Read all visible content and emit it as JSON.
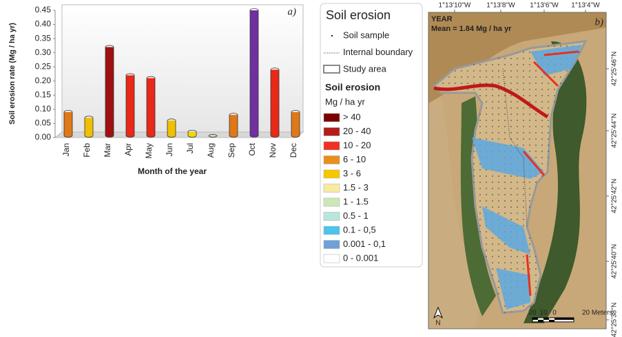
{
  "chart_data": {
    "type": "bar",
    "panel_label": "a)",
    "xlabel": "Month of the year",
    "ylabel": "Soil erosion rate (Mg / ha  yr)",
    "categories": [
      "Jan",
      "Feb",
      "Mar",
      "Apr",
      "May",
      "Jun",
      "Jul",
      "Aug",
      "Sep",
      "Oct",
      "Nov",
      "Dec"
    ],
    "values": [
      0.09,
      0.07,
      0.32,
      0.22,
      0.21,
      0.06,
      0.02,
      0.005,
      0.08,
      0.45,
      0.24,
      0.09
    ],
    "colors": [
      "#e07818",
      "#f0c000",
      "#a01010",
      "#e82818",
      "#e82818",
      "#f0c000",
      "#f0d800",
      "#d8d070",
      "#e07818",
      "#7030a0",
      "#e82818",
      "#e07818"
    ],
    "ylim": [
      0,
      0.45
    ],
    "yticks": [
      {
        "value": 0,
        "label": "0.00"
      },
      0.05,
      {
        "value": 0.1,
        "label": "0.10"
      },
      0.15,
      {
        "value": 0.2,
        "label": "0.20"
      },
      0.25,
      {
        "value": 0.3,
        "label": "0.30"
      },
      0.35,
      {
        "value": 0.4,
        "label": "0.40"
      },
      0.45
    ],
    "grid": false
  },
  "legend": {
    "title": "Soil erosion",
    "items": [
      {
        "label": "Soil sample"
      },
      {
        "label": "Internal boundary"
      },
      {
        "label": "Study area"
      }
    ],
    "classes_title": "Soil erosion",
    "units": "Mg / ha yr",
    "classes": [
      {
        "label": "> 40",
        "color": "#7a0000"
      },
      {
        "label": "20 - 40",
        "color": "#b41c1c"
      },
      {
        "label": "10 - 20",
        "color": "#f03020"
      },
      {
        "label": "6 - 10",
        "color": "#e8901a"
      },
      {
        "label": "3 - 6",
        "color": "#f5c800"
      },
      {
        "label": "1.5 - 3",
        "color": "#f8eaa0"
      },
      {
        "label": "1 - 1.5",
        "color": "#cce8b8"
      },
      {
        "label": "0.5 - 1",
        "color": "#b8e6dc"
      },
      {
        "label": "0.1 - 0,5",
        "color": "#4cc4ec"
      },
      {
        "label": "0.001 - 0,1",
        "color": "#6fa0d8"
      },
      {
        "label": "0 - 0.001",
        "color": "#ffffff"
      }
    ]
  },
  "map": {
    "period": "YEAR",
    "mean": "Mean = 1.84 Mg / ha yr",
    "panel_label": "b)",
    "longitudes": [
      "1°13'10''W",
      "1°13'8''W",
      "1°13'6''W",
      "1°13'4''W"
    ],
    "latitudes": [
      "42°25'46''N",
      "42°25'44''N",
      "42°25'42''N",
      "42°25'40''N",
      "42°25'38''N"
    ],
    "scale_labels": [
      "20",
      "10",
      "0",
      "20 Meters"
    ],
    "north": "N"
  }
}
